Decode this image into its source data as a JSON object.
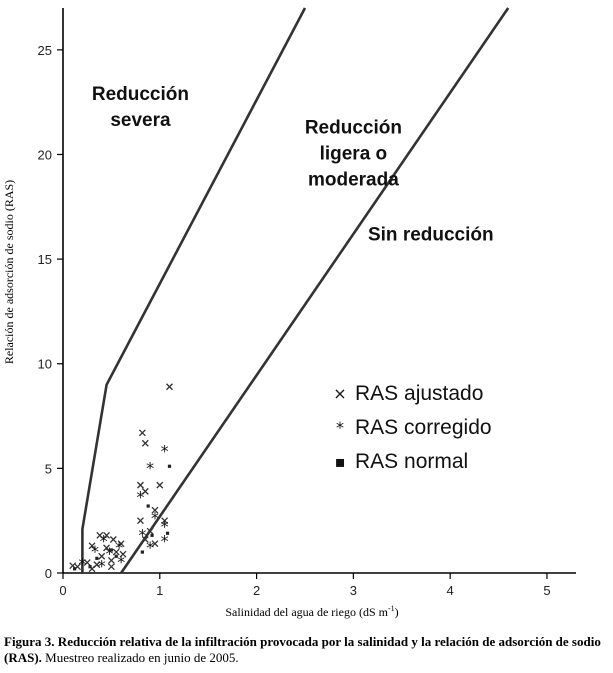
{
  "chart_data": {
    "type": "scatter",
    "xlabel": "Salinidad del agua de riego (dS m",
    "xlabel_sup": "-1",
    "xlabel_end": ")",
    "ylabel": "Relación de adsorción de sodio (RAS)",
    "xlim": [
      0,
      5.3
    ],
    "ylim": [
      0,
      27
    ],
    "xticks": [
      0,
      1,
      2,
      3,
      4,
      5
    ],
    "yticks": [
      0,
      5,
      10,
      15,
      20,
      25
    ],
    "boundaries": [
      {
        "name": "Límite reducción severa",
        "points": [
          [
            0.2,
            0
          ],
          [
            0.2,
            2.1
          ],
          [
            0.45,
            9
          ],
          [
            2.5,
            27
          ]
        ]
      },
      {
        "name": "Límite sin reducción",
        "points": [
          [
            0.6,
            0
          ],
          [
            4.6,
            27
          ]
        ]
      }
    ],
    "zone_labels": [
      {
        "lines": [
          "Reducción",
          "severa"
        ],
        "x": 0.8,
        "y": 22.6
      },
      {
        "lines": [
          "Reducción",
          "ligera o",
          "moderada"
        ],
        "x": 3.0,
        "y": 21.0
      },
      {
        "lines": [
          "Sin reducción"
        ],
        "x": 3.8,
        "y": 15.9
      }
    ],
    "legend": [
      {
        "symbol": "×",
        "label": "RAS ajustado"
      },
      {
        "symbol": "*",
        "label": "RAS corregido"
      },
      {
        "symbol": "▪",
        "label": "RAS normal"
      }
    ],
    "series": [
      {
        "name": "RAS ajustado",
        "marker": "x",
        "points": [
          [
            1.1,
            8.9
          ],
          [
            0.82,
            6.7
          ],
          [
            0.85,
            6.2
          ],
          [
            0.8,
            4.2
          ],
          [
            0.85,
            3.9
          ],
          [
            1.0,
            4.2
          ],
          [
            0.95,
            3.0
          ],
          [
            1.05,
            2.5
          ],
          [
            0.8,
            2.5
          ],
          [
            0.9,
            2.0
          ],
          [
            0.85,
            1.6
          ],
          [
            0.95,
            1.4
          ],
          [
            0.38,
            1.8
          ],
          [
            0.45,
            1.8
          ],
          [
            0.52,
            1.6
          ],
          [
            0.6,
            1.4
          ],
          [
            0.3,
            1.3
          ],
          [
            0.45,
            1.2
          ],
          [
            0.55,
            1.0
          ],
          [
            0.62,
            0.9
          ],
          [
            0.4,
            0.8
          ],
          [
            0.5,
            0.6
          ],
          [
            0.25,
            0.5
          ],
          [
            0.35,
            0.4
          ],
          [
            0.15,
            0.3
          ],
          [
            0.1,
            0.35
          ],
          [
            0.3,
            0.2
          ],
          [
            0.5,
            0.3
          ]
        ]
      },
      {
        "name": "RAS corregido",
        "marker": "*",
        "points": [
          [
            1.05,
            5.8
          ],
          [
            0.9,
            5.0
          ],
          [
            0.8,
            3.6
          ],
          [
            1.05,
            2.2
          ],
          [
            0.95,
            2.6
          ],
          [
            0.82,
            1.8
          ],
          [
            0.9,
            1.2
          ],
          [
            1.05,
            1.5
          ],
          [
            0.42,
            1.5
          ],
          [
            0.58,
            1.2
          ],
          [
            0.33,
            1.0
          ],
          [
            0.48,
            0.9
          ],
          [
            0.6,
            0.5
          ],
          [
            0.2,
            0.4
          ],
          [
            0.4,
            0.3
          ]
        ]
      },
      {
        "name": "RAS normal",
        "marker": "square",
        "points": [
          [
            1.1,
            5.1
          ],
          [
            0.88,
            3.2
          ],
          [
            0.92,
            1.8
          ],
          [
            1.08,
            1.9
          ],
          [
            0.82,
            1.0
          ],
          [
            0.5,
            1.1
          ],
          [
            0.35,
            0.7
          ],
          [
            0.55,
            0.8
          ],
          [
            0.28,
            0.3
          ],
          [
            0.12,
            0.2
          ]
        ]
      }
    ]
  },
  "caption": {
    "bold": "Figura 3. Reducción relativa de la infiltración provocada por la salinidad y la relación de adsorción de sodio (RAS).",
    "normal": " Muestreo realizado en junio de 2005."
  }
}
